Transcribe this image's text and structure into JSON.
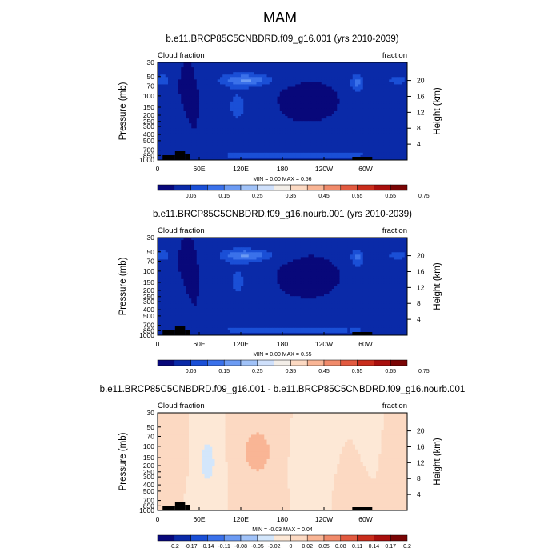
{
  "figure_title": "MAM",
  "chart_data": [
    {
      "type": "heatmap",
      "title": "b.e11.BRCP85C5CNBDRD.f09_g16.001 (yrs 2010-2039)",
      "left_label": "Cloud fraction",
      "right_label": "fraction",
      "ylabel": "Pressure (mb)",
      "ylabel_right": "Height (km)",
      "y_ticks": [
        "30",
        "50",
        "70",
        "100",
        "150",
        "200",
        "250",
        "300",
        "400",
        "500",
        "700",
        "850",
        "1000"
      ],
      "height_ticks": [
        "20",
        "16",
        "12",
        "8",
        "4"
      ],
      "x_ticks": [
        "0",
        "60E",
        "120E",
        "180",
        "120W",
        "60W"
      ],
      "stats": "MIN =   0.00  MAX =   0.56",
      "min": 0.0,
      "max": 0.56,
      "colorbar_labels": [
        "0.05",
        "0.15",
        "0.25",
        "0.35",
        "0.45",
        "0.55",
        "0.65",
        "0.75"
      ],
      "colorbar_colors": [
        "#08087a",
        "#0a2aa8",
        "#1a4fd6",
        "#3a71ea",
        "#6c9bf3",
        "#a0c2f8",
        "#cfe0fb",
        "#f3eee8",
        "#fcd9c2",
        "#f9b595",
        "#f08a6a",
        "#e25a40",
        "#c92d1c",
        "#a80f0d",
        "#7a0505"
      ]
    },
    {
      "type": "heatmap",
      "title": "b.e11.BRCP85C5CNBDRD.f09_g16.nourb.001 (yrs 2010-2039)",
      "left_label": "Cloud fraction",
      "right_label": "fraction",
      "ylabel": "Pressure (mb)",
      "ylabel_right": "Height (km)",
      "y_ticks": [
        "30",
        "50",
        "70",
        "100",
        "150",
        "200",
        "250",
        "300",
        "400",
        "500",
        "700",
        "850",
        "1000"
      ],
      "height_ticks": [
        "20",
        "16",
        "12",
        "8",
        "4"
      ],
      "x_ticks": [
        "0",
        "60E",
        "120E",
        "180",
        "120W",
        "60W"
      ],
      "stats": "MIN =   0.00  MAX =   0.55",
      "min": 0.0,
      "max": 0.55,
      "colorbar_labels": [
        "0.05",
        "0.15",
        "0.25",
        "0.35",
        "0.45",
        "0.55",
        "0.65",
        "0.75"
      ],
      "colorbar_colors": [
        "#08087a",
        "#0a2aa8",
        "#1a4fd6",
        "#3a71ea",
        "#6c9bf3",
        "#a0c2f8",
        "#cfe0fb",
        "#f3eee8",
        "#fcd9c2",
        "#f9b595",
        "#f08a6a",
        "#e25a40",
        "#c92d1c",
        "#a80f0d",
        "#7a0505"
      ]
    },
    {
      "type": "heatmap",
      "title": "b.e11.BRCP85C5CNBDRD.f09_g16.001 - b.e11.BRCP85C5CNBDRD.f09_g16.nourb.001",
      "left_label": "Cloud fraction",
      "right_label": "fraction",
      "ylabel": "Pressure (mb)",
      "ylabel_right": "Height (km)",
      "y_ticks": [
        "30",
        "50",
        "70",
        "100",
        "150",
        "200",
        "250",
        "300",
        "400",
        "500",
        "700",
        "850",
        "1000"
      ],
      "height_ticks": [
        "20",
        "16",
        "12",
        "8",
        "4"
      ],
      "x_ticks": [
        "0",
        "60E",
        "120E",
        "180",
        "120W",
        "60W"
      ],
      "stats": "MIN =  -0.03  MAX =   0.04",
      "min": -0.03,
      "max": 0.04,
      "colorbar_labels": [
        "-0.2",
        "-0.17",
        "-0.14",
        "-0.11",
        "-0.08",
        "-0.05",
        "-0.02",
        "0",
        "0.02",
        "0.05",
        "0.08",
        "0.11",
        "0.14",
        "0.17",
        "0.2"
      ],
      "colorbar_colors": [
        "#08087a",
        "#0a2aa8",
        "#1a4fd6",
        "#3a71ea",
        "#6c9bf3",
        "#a0c2f8",
        "#d3e6fb",
        "#fde8d6",
        "#fcd9c2",
        "#f9b595",
        "#f08a6a",
        "#e25a40",
        "#c92d1c",
        "#a80f0d",
        "#7a0505"
      ]
    }
  ]
}
